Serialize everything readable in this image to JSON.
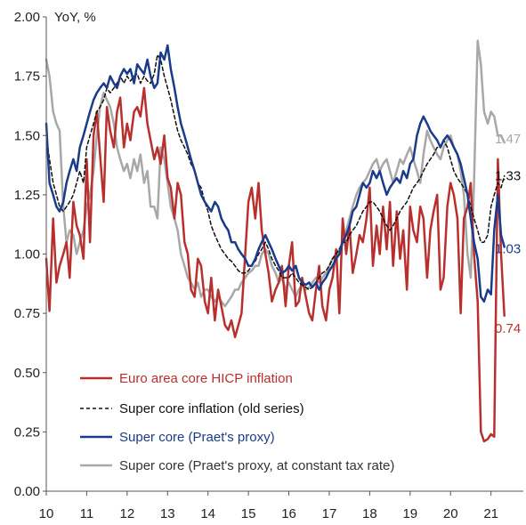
{
  "chart_data": {
    "type": "line",
    "ylabel": "YoY, %",
    "ylim": [
      0,
      2
    ],
    "yticks": [
      "0.00",
      "0.25",
      "0.50",
      "0.75",
      "1.00",
      "1.25",
      "1.50",
      "1.75",
      "2.00"
    ],
    "xlim": [
      10,
      21.8
    ],
    "xticks": [
      "10",
      "11",
      "12",
      "13",
      "14",
      "15",
      "16",
      "17",
      "18",
      "19",
      "20",
      "21"
    ],
    "grid": false,
    "legend_position": "bottom-left",
    "series": [
      {
        "name": "Euro area core HICP inflation",
        "color": "#b8302e",
        "dash": false,
        "end_label": "0.74",
        "x": [
          10.0,
          10.08,
          10.17,
          10.25,
          10.33,
          10.42,
          10.5,
          10.58,
          10.67,
          10.75,
          10.83,
          10.92,
          11.0,
          11.08,
          11.17,
          11.25,
          11.33,
          11.42,
          11.5,
          11.58,
          11.67,
          11.75,
          11.83,
          11.92,
          12.0,
          12.08,
          12.17,
          12.25,
          12.33,
          12.42,
          12.5,
          12.58,
          12.67,
          12.75,
          12.83,
          12.92,
          13.0,
          13.08,
          13.17,
          13.25,
          13.33,
          13.42,
          13.5,
          13.58,
          13.67,
          13.75,
          13.83,
          13.92,
          14.0,
          14.08,
          14.17,
          14.25,
          14.33,
          14.42,
          14.5,
          14.58,
          14.67,
          14.75,
          14.83,
          14.92,
          15.0,
          15.08,
          15.17,
          15.25,
          15.33,
          15.42,
          15.5,
          15.58,
          15.67,
          15.75,
          15.83,
          15.92,
          16.0,
          16.08,
          16.17,
          16.25,
          16.33,
          16.42,
          16.5,
          16.58,
          16.67,
          16.75,
          16.83,
          16.92,
          17.0,
          17.08,
          17.17,
          17.25,
          17.33,
          17.42,
          17.5,
          17.58,
          17.67,
          17.75,
          17.83,
          17.92,
          18.0,
          18.08,
          18.17,
          18.25,
          18.33,
          18.42,
          18.5,
          18.58,
          18.67,
          18.75,
          18.83,
          18.92,
          19.0,
          19.08,
          19.17,
          19.25,
          19.33,
          19.42,
          19.5,
          19.58,
          19.67,
          19.75,
          19.83,
          19.92,
          20.0,
          20.08,
          20.17,
          20.25,
          20.33,
          20.42,
          20.5,
          20.58,
          20.67,
          20.75,
          20.83,
          20.92,
          21.0,
          21.08,
          21.17,
          21.25,
          21.33
        ],
        "y": [
          0.98,
          0.76,
          1.15,
          0.88,
          0.95,
          1.0,
          1.05,
          0.9,
          1.22,
          1.12,
          1.08,
          0.98,
          1.4,
          1.05,
          1.5,
          1.6,
          1.42,
          1.22,
          1.62,
          1.52,
          1.45,
          1.6,
          1.66,
          1.45,
          1.55,
          1.48,
          1.6,
          1.62,
          1.58,
          1.7,
          1.55,
          1.48,
          1.4,
          1.45,
          1.38,
          1.5,
          1.32,
          1.28,
          1.15,
          1.3,
          1.25,
          1.05,
          1.0,
          0.85,
          0.82,
          0.98,
          0.95,
          0.8,
          0.75,
          0.9,
          0.72,
          0.85,
          0.78,
          0.7,
          0.68,
          0.72,
          0.65,
          0.7,
          0.75,
          1.0,
          1.22,
          1.28,
          1.15,
          1.3,
          1.1,
          1.0,
          0.92,
          0.8,
          0.85,
          0.88,
          0.95,
          0.78,
          0.95,
          1.05,
          0.78,
          0.8,
          0.9,
          0.82,
          0.75,
          0.72,
          0.85,
          0.95,
          0.78,
          0.72,
          0.85,
          0.9,
          1.02,
          0.75,
          1.15,
          1.0,
          1.12,
          0.92,
          1.0,
          1.08,
          1.05,
          1.15,
          1.28,
          0.95,
          1.12,
          1.0,
          1.2,
          1.02,
          1.22,
          0.95,
          1.18,
          0.98,
          1.1,
          0.85,
          1.2,
          1.1,
          1.05,
          1.2,
          1.15,
          0.9,
          1.1,
          1.18,
          1.25,
          0.85,
          0.9,
          1.2,
          1.3,
          1.25,
          1.15,
          0.75,
          1.15,
          1.2,
          1.3,
          1.0,
          0.8,
          0.25,
          0.21,
          0.22,
          0.24,
          0.23,
          1.4,
          1.0,
          0.74
        ],
        "lw": 2.5
      },
      {
        "name": "Super core inflation (old series)",
        "color": "#111111",
        "dash": true,
        "end_label": "1.33",
        "x": [
          10.0,
          10.08,
          10.17,
          10.25,
          10.33,
          10.42,
          10.5,
          10.58,
          10.67,
          10.75,
          10.83,
          10.92,
          11.0,
          11.08,
          11.17,
          11.25,
          11.33,
          11.42,
          11.5,
          11.58,
          11.67,
          11.75,
          11.83,
          11.92,
          12.0,
          12.08,
          12.17,
          12.25,
          12.33,
          12.42,
          12.5,
          12.58,
          12.67,
          12.75,
          12.83,
          12.92,
          13.0,
          13.08,
          13.17,
          13.25,
          13.33,
          13.42,
          13.5,
          13.58,
          13.67,
          13.75,
          13.83,
          13.92,
          14.0,
          14.08,
          14.17,
          14.25,
          14.33,
          14.42,
          14.5,
          14.58,
          14.67,
          14.75,
          14.83,
          14.92,
          15.0,
          15.08,
          15.17,
          15.25,
          15.33,
          15.42,
          15.5,
          15.58,
          15.67,
          15.75,
          15.83,
          15.92,
          16.0,
          16.08,
          16.17,
          16.25,
          16.33,
          16.42,
          16.5,
          16.58,
          16.67,
          16.75,
          16.83,
          16.92,
          17.0,
          17.08,
          17.17,
          17.25,
          17.33,
          17.42,
          17.5,
          17.58,
          17.67,
          17.75,
          17.83,
          17.92,
          18.0,
          18.08,
          18.17,
          18.25,
          18.33,
          18.42,
          18.5,
          18.58,
          18.67,
          18.75,
          18.83,
          18.92,
          19.0,
          19.08,
          19.17,
          19.25,
          19.33,
          19.42,
          19.5,
          19.58,
          19.67,
          19.75,
          19.83,
          19.92,
          20.0,
          20.08,
          20.17,
          20.25,
          20.33,
          20.42,
          20.5,
          20.58,
          20.67,
          20.75,
          20.83,
          20.92,
          21.0,
          21.08,
          21.17,
          21.25,
          21.33
        ],
        "y": [
          1.5,
          1.4,
          1.3,
          1.25,
          1.2,
          1.18,
          1.2,
          1.22,
          1.25,
          1.3,
          1.35,
          1.3,
          1.45,
          1.5,
          1.55,
          1.6,
          1.62,
          1.65,
          1.7,
          1.68,
          1.7,
          1.72,
          1.75,
          1.72,
          1.75,
          1.73,
          1.75,
          1.76,
          1.72,
          1.75,
          1.73,
          1.72,
          1.76,
          1.84,
          1.82,
          1.75,
          1.7,
          1.65,
          1.58,
          1.52,
          1.48,
          1.45,
          1.42,
          1.38,
          1.35,
          1.3,
          1.28,
          1.22,
          1.18,
          1.12,
          1.08,
          1.05,
          1.02,
          1.0,
          0.98,
          0.97,
          0.95,
          0.93,
          0.92,
          0.92,
          0.93,
          0.95,
          0.97,
          1.0,
          1.02,
          1.05,
          1.02,
          0.98,
          0.95,
          0.93,
          0.9,
          0.9,
          0.9,
          0.92,
          0.9,
          0.88,
          0.87,
          0.86,
          0.85,
          0.86,
          0.88,
          0.9,
          0.92,
          0.93,
          0.95,
          0.98,
          1.0,
          1.02,
          1.05,
          1.05,
          1.08,
          1.1,
          1.12,
          1.15,
          1.18,
          1.2,
          1.22,
          1.22,
          1.2,
          1.18,
          1.15,
          1.12,
          1.1,
          1.12,
          1.15,
          1.18,
          1.2,
          1.22,
          1.25,
          1.28,
          1.3,
          1.32,
          1.35,
          1.38,
          1.4,
          1.42,
          1.45,
          1.45,
          1.48,
          1.45,
          1.4,
          1.35,
          1.32,
          1.3,
          1.28,
          1.25,
          1.2,
          1.15,
          1.1,
          1.05,
          1.05,
          1.08,
          1.2,
          1.25,
          1.3,
          1.28,
          1.33
        ],
        "lw": 1.5
      },
      {
        "name": "Super core (Praet's proxy)",
        "color": "#1a3a8a",
        "dash": false,
        "end_label": "1.03",
        "x": [
          10.0,
          10.08,
          10.17,
          10.25,
          10.33,
          10.42,
          10.5,
          10.58,
          10.67,
          10.75,
          10.83,
          10.92,
          11.0,
          11.08,
          11.17,
          11.25,
          11.33,
          11.42,
          11.5,
          11.58,
          11.67,
          11.75,
          11.83,
          11.92,
          12.0,
          12.08,
          12.17,
          12.25,
          12.33,
          12.42,
          12.5,
          12.58,
          12.67,
          12.75,
          12.83,
          12.92,
          13.0,
          13.08,
          13.17,
          13.25,
          13.33,
          13.42,
          13.5,
          13.58,
          13.67,
          13.75,
          13.83,
          13.92,
          14.0,
          14.08,
          14.17,
          14.25,
          14.33,
          14.42,
          14.5,
          14.58,
          14.67,
          14.75,
          14.83,
          14.92,
          15.0,
          15.08,
          15.17,
          15.25,
          15.33,
          15.42,
          15.5,
          15.58,
          15.67,
          15.75,
          15.83,
          15.92,
          16.0,
          16.08,
          16.17,
          16.25,
          16.33,
          16.42,
          16.5,
          16.58,
          16.67,
          16.75,
          16.83,
          16.92,
          17.0,
          17.08,
          17.17,
          17.25,
          17.33,
          17.42,
          17.5,
          17.58,
          17.67,
          17.75,
          17.83,
          17.92,
          18.0,
          18.08,
          18.17,
          18.25,
          18.33,
          18.42,
          18.5,
          18.58,
          18.67,
          18.75,
          18.83,
          18.92,
          19.0,
          19.08,
          19.17,
          19.25,
          19.33,
          19.42,
          19.5,
          19.58,
          19.67,
          19.75,
          19.83,
          19.92,
          20.0,
          20.08,
          20.17,
          20.25,
          20.33,
          20.42,
          20.5,
          20.58,
          20.67,
          20.75,
          20.83,
          20.92,
          21.0,
          21.08,
          21.17,
          21.25,
          21.33
        ],
        "y": [
          1.55,
          1.3,
          1.25,
          1.2,
          1.18,
          1.22,
          1.3,
          1.35,
          1.4,
          1.35,
          1.45,
          1.5,
          1.55,
          1.6,
          1.65,
          1.68,
          1.7,
          1.72,
          1.7,
          1.75,
          1.72,
          1.7,
          1.75,
          1.78,
          1.76,
          1.78,
          1.72,
          1.8,
          1.78,
          1.76,
          1.82,
          1.75,
          1.7,
          1.72,
          1.85,
          1.82,
          1.88,
          1.78,
          1.7,
          1.62,
          1.55,
          1.5,
          1.45,
          1.4,
          1.35,
          1.3,
          1.25,
          1.22,
          1.2,
          1.18,
          1.22,
          1.2,
          1.15,
          1.12,
          1.1,
          1.05,
          1.05,
          1.02,
          1.0,
          0.98,
          0.95,
          0.95,
          0.98,
          1.02,
          1.05,
          1.08,
          1.05,
          1.02,
          0.98,
          0.95,
          0.92,
          0.93,
          0.95,
          0.93,
          0.95,
          0.9,
          0.88,
          0.87,
          0.88,
          0.86,
          0.88,
          0.85,
          0.88,
          0.9,
          0.93,
          0.95,
          0.98,
          1.0,
          1.05,
          1.08,
          1.12,
          1.18,
          1.2,
          1.25,
          1.3,
          1.28,
          1.3,
          1.35,
          1.32,
          1.35,
          1.3,
          1.25,
          1.28,
          1.3,
          1.32,
          1.3,
          1.35,
          1.32,
          1.38,
          1.4,
          1.5,
          1.55,
          1.58,
          1.55,
          1.52,
          1.5,
          1.48,
          1.45,
          1.48,
          1.5,
          1.48,
          1.45,
          1.42,
          1.38,
          1.32,
          1.25,
          1.15,
          1.05,
          0.98,
          0.82,
          0.8,
          0.85,
          0.83,
          1.1,
          1.25,
          1.08,
          1.03
        ],
        "lw": 2.5
      },
      {
        "name": "Super core (Praet's proxy, at constant tax rate)",
        "color": "#a8a8a8",
        "dash": false,
        "end_label": "1.47",
        "x": [
          10.0,
          10.08,
          10.17,
          10.25,
          10.33,
          10.42,
          10.5,
          10.58,
          10.67,
          10.75,
          10.83,
          10.92,
          11.0,
          11.08,
          11.17,
          11.25,
          11.33,
          11.42,
          11.5,
          11.58,
          11.67,
          11.75,
          11.83,
          11.92,
          12.0,
          12.08,
          12.17,
          12.25,
          12.33,
          12.42,
          12.5,
          12.58,
          12.67,
          12.75,
          12.83,
          12.92,
          13.0,
          13.08,
          13.17,
          13.25,
          13.33,
          13.42,
          13.5,
          13.58,
          13.67,
          13.75,
          13.83,
          13.92,
          14.0,
          14.08,
          14.17,
          14.25,
          14.33,
          14.42,
          14.5,
          14.58,
          14.67,
          14.75,
          14.83,
          14.92,
          15.0,
          15.08,
          15.17,
          15.25,
          15.33,
          15.42,
          15.5,
          15.58,
          15.67,
          15.75,
          15.83,
          15.92,
          16.0,
          16.08,
          16.17,
          16.25,
          16.33,
          16.42,
          16.5,
          16.58,
          16.67,
          16.75,
          16.83,
          16.92,
          17.0,
          17.08,
          17.17,
          17.25,
          17.33,
          17.42,
          17.5,
          17.58,
          17.67,
          17.75,
          17.83,
          17.92,
          18.0,
          18.08,
          18.17,
          18.25,
          18.33,
          18.42,
          18.5,
          18.58,
          18.67,
          18.75,
          18.83,
          18.92,
          19.0,
          19.08,
          19.17,
          19.25,
          19.33,
          19.42,
          19.5,
          19.58,
          19.67,
          19.75,
          19.83,
          19.92,
          20.0,
          20.08,
          20.17,
          20.25,
          20.33,
          20.42,
          20.5,
          20.58,
          20.67,
          20.75,
          20.83,
          20.92,
          21.0,
          21.08,
          21.17,
          21.25,
          21.33
        ],
        "y": [
          1.82,
          1.75,
          1.6,
          1.55,
          1.52,
          1.2,
          1.05,
          1.1,
          1.08,
          1.0,
          1.05,
          1.1,
          1.2,
          1.25,
          1.35,
          1.5,
          1.62,
          1.68,
          1.65,
          1.62,
          1.55,
          1.45,
          1.4,
          1.35,
          1.38,
          1.32,
          1.4,
          1.35,
          1.42,
          1.3,
          1.35,
          1.2,
          1.2,
          1.15,
          1.45,
          1.4,
          1.3,
          1.2,
          1.15,
          1.1,
          1.0,
          0.95,
          0.9,
          0.88,
          0.85,
          0.88,
          0.82,
          0.85,
          0.85,
          0.82,
          0.8,
          0.82,
          0.8,
          0.78,
          0.8,
          0.82,
          0.85,
          0.85,
          0.88,
          0.9,
          0.92,
          0.93,
          0.95,
          0.95,
          1.0,
          1.02,
          1.0,
          0.95,
          0.92,
          0.88,
          0.9,
          0.85,
          0.88,
          0.85,
          0.82,
          0.85,
          0.87,
          0.85,
          0.86,
          0.88,
          0.9,
          0.88,
          0.9,
          0.92,
          0.95,
          0.98,
          1.0,
          1.02,
          1.05,
          1.1,
          1.15,
          1.2,
          1.25,
          1.28,
          1.3,
          1.32,
          1.35,
          1.38,
          1.4,
          1.35,
          1.38,
          1.4,
          1.35,
          1.3,
          1.35,
          1.4,
          1.38,
          1.42,
          1.45,
          1.4,
          1.35,
          1.3,
          1.42,
          1.52,
          1.48,
          1.45,
          1.42,
          1.4,
          1.45,
          1.48,
          1.5,
          1.45,
          1.42,
          1.35,
          1.25,
          1.0,
          0.9,
          1.3,
          1.9,
          1.8,
          1.6,
          1.55,
          1.6,
          1.58,
          1.5,
          1.5,
          1.47
        ],
        "lw": 2.5
      }
    ]
  }
}
